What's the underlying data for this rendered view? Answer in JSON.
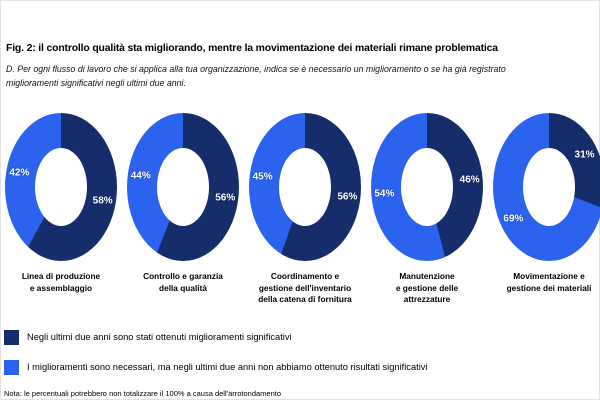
{
  "chart_data": {
    "type": "pie",
    "subtype": "donut-multiples",
    "units": "%",
    "title": "Fig. 2: il controllo qualità sta migliorando, mentre la movimentazione dei materiali rimane problematica",
    "subtitle": "D. Per ogni flusso di lavoro che si applica alla tua organizzazione, indica se è necessario un miglioramento o se ha già registrato miglioramenti significativi negli ultimi due anni.",
    "note": "Nota: le percentuali potrebbero non totalizzare il 100% a causa dell'arrotondamento",
    "legend": [
      {
        "name": "significant-improvements-achieved",
        "label": "Negli ultimi due anni sono stati ottenuti miglioramenti significativi",
        "color": "#152e6b"
      },
      {
        "name": "improvements-needed",
        "label": "I miglioramenti sono necessari, ma negli ultimi due anni non abbiamo ottenuto risultati significativi",
        "color": "#2b63ee"
      }
    ],
    "donuts": [
      {
        "category": "Linea di produzione\ne assemblaggio",
        "achieved_pct": 58,
        "needed_pct": 42
      },
      {
        "category": "Controllo e garanzia\ndella qualità",
        "achieved_pct": 56,
        "needed_pct": 44
      },
      {
        "category": "Coordinamento e\ngestione dell'inventario\ndella catena di fornitura",
        "achieved_pct": 56,
        "needed_pct": 45
      },
      {
        "category": "Manutenzione\ne gestione delle\nattrezzature",
        "achieved_pct": 46,
        "needed_pct": 54
      },
      {
        "category": "Movimentazione e\ngestione dei materiali",
        "achieved_pct": 31,
        "needed_pct": 69
      }
    ]
  }
}
